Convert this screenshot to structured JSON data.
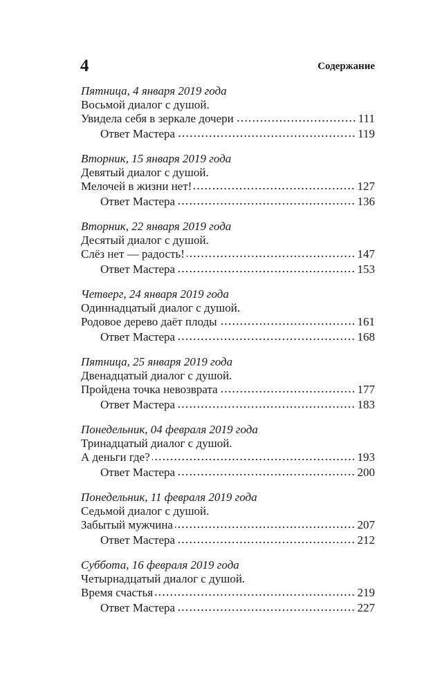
{
  "page_number": "4",
  "running_head": "Содержание",
  "entries": [
    {
      "date": "Пятница, 4 января 2019 года",
      "subtitle": "Восьмой диалог с душой.",
      "title": "Увидела себя в зеркале дочери",
      "page": "111",
      "answer": "Ответ Мастера",
      "answer_page": "119"
    },
    {
      "date": "Вторник, 15 января 2019 года",
      "subtitle": "Девятый диалог с душой.",
      "title": "Мелочей в жизни нет!",
      "page": "127",
      "answer": "Ответ Мастера",
      "answer_page": "136"
    },
    {
      "date": "Вторник, 22 января 2019 года",
      "subtitle": "Десятый диалог с душой.",
      "title": "Слёз нет — радость!",
      "page": "147",
      "answer": "Ответ Мастера",
      "answer_page": "153"
    },
    {
      "date": "Четверг, 24 января 2019 года",
      "subtitle": "Одиннадцатый диалог с душой.",
      "title": "Родовое дерево даёт плоды",
      "page": "161",
      "answer": "Ответ Мастера",
      "answer_page": "168"
    },
    {
      "date": "Пятница, 25 января 2019 года",
      "subtitle": "Двенадцатый диалог с душой.",
      "title": "Пройдена точка невозврата",
      "page": "177",
      "answer": "Ответ Мастера",
      "answer_page": "183"
    },
    {
      "date": "Понедельник, 04 февраля 2019 года",
      "subtitle": "Тринадцатый диалог с душой.",
      "title": "А деньги где?",
      "page": "193",
      "answer": "Ответ Мастера",
      "answer_page": "200"
    },
    {
      "date": "Понедельник, 11 февраля 2019 года",
      "subtitle": "Седьмой диалог с душой.",
      "title": "Забытый мужчина",
      "page": "207",
      "answer": "Ответ Мастера",
      "answer_page": "212"
    },
    {
      "date": "Суббота, 16 февраля 2019 года",
      "subtitle": "Четырнадцатый диалог с душой.",
      "title": "Время счастья",
      "page": "219",
      "answer": "Ответ Мастера",
      "answer_page": "227"
    }
  ]
}
